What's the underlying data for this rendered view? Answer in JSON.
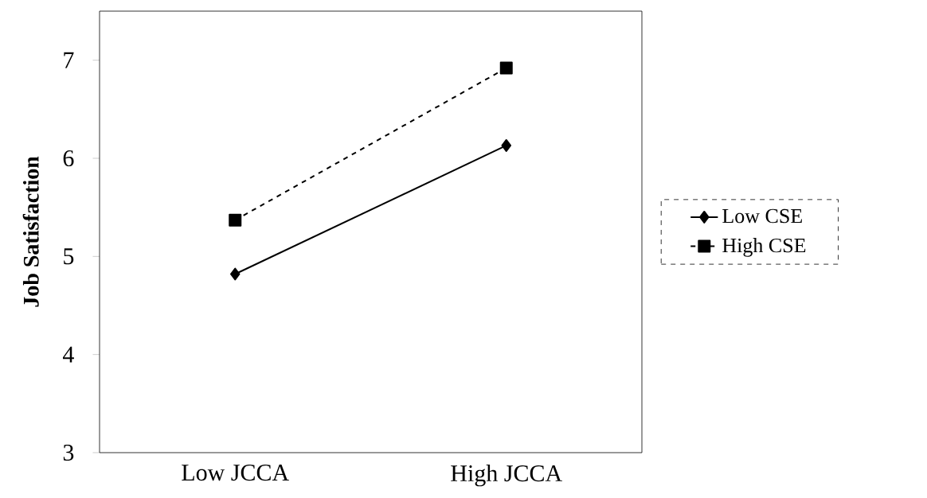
{
  "chart_data": {
    "type": "line",
    "ylabel": "Job Satisfaction",
    "categories": [
      "Low JCCA",
      "High JCCA"
    ],
    "ylim": [
      3,
      7.5
    ],
    "yticks": [
      3,
      4,
      5,
      6,
      7
    ],
    "grid": false,
    "legend": "right",
    "series": [
      {
        "name": "Low CSE",
        "color": "#000000",
        "values": [
          4.82,
          6.13
        ],
        "marker": "diamond",
        "line_style": "solid"
      },
      {
        "name": "High CSE",
        "color": "#000000",
        "values": [
          5.37,
          6.92
        ],
        "marker": "square",
        "line_style": "dashed"
      }
    ]
  }
}
